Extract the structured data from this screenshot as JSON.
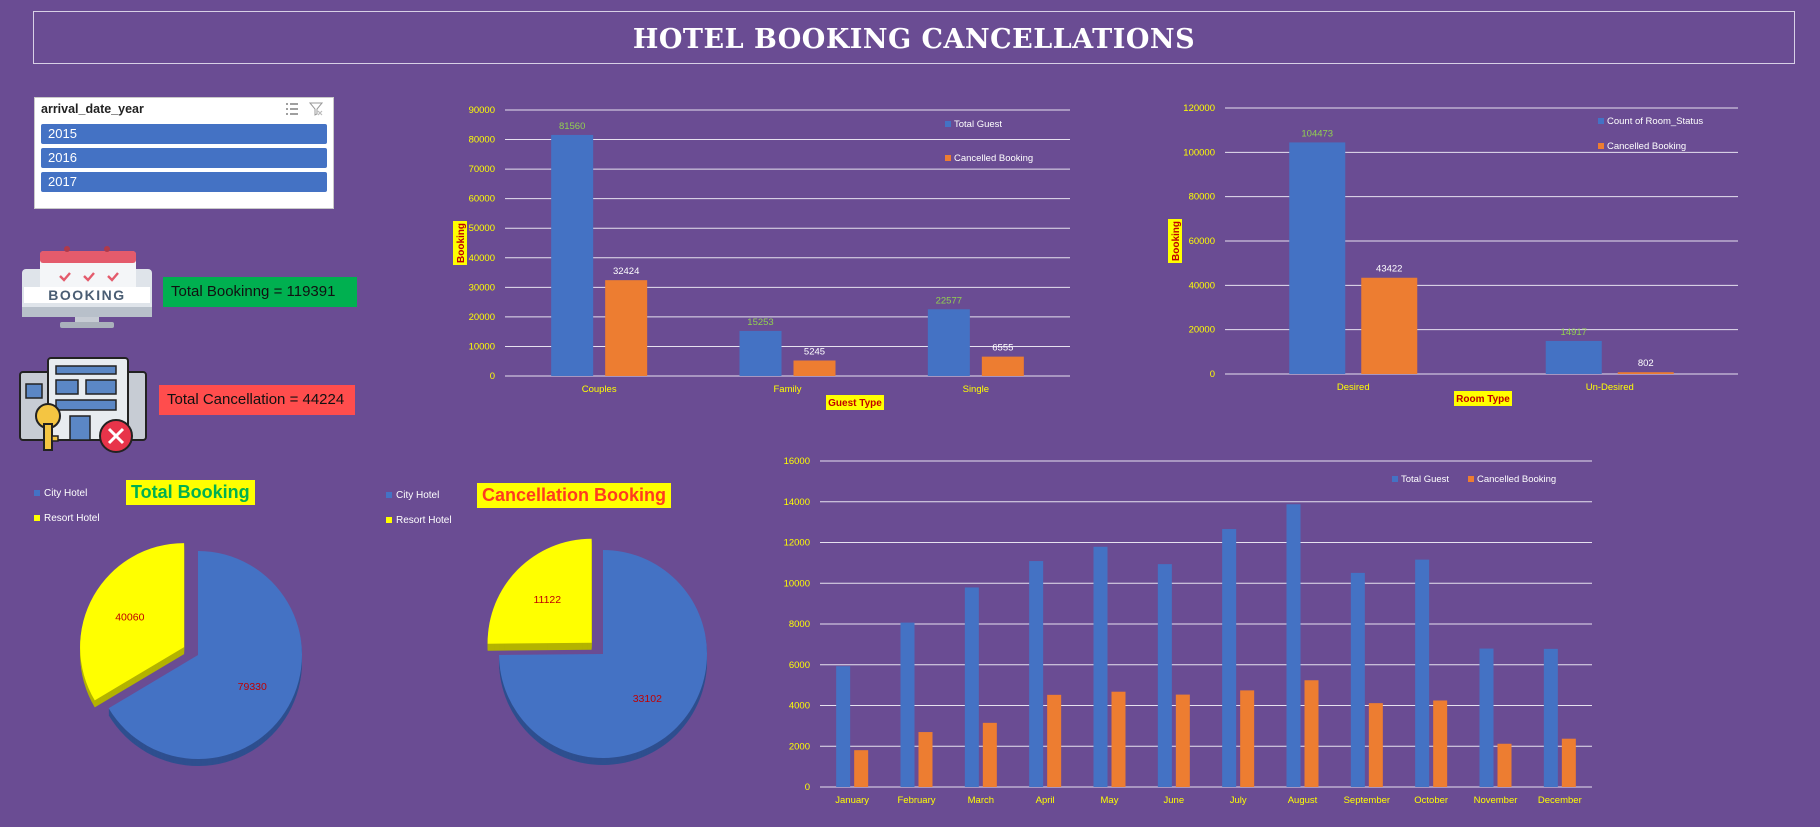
{
  "dashboard": {
    "title": "HOTEL BOOKING CANCELLATIONS",
    "background": "#6a4c93"
  },
  "slicer": {
    "header": "arrival_date_year",
    "items": [
      "2015",
      "2016",
      "2017"
    ],
    "item_color": "#4472c4",
    "icons": [
      "multi-select-icon",
      "clear-filter-icon"
    ]
  },
  "kpis": {
    "total_booking_label": "Total Bookinng = 119391",
    "total_booking_color": "#00b050",
    "total_cancellation_label": "Total Cancellation = 44224",
    "total_cancellation_color": "#ff4d4d",
    "booking_icon": "booking-calendar-monitor-icon",
    "cancellation_icon": "hotel-key-cancel-icon"
  },
  "colors": {
    "blue": "#4472c4",
    "orange": "#ed7d31",
    "yellow": "#ffff00",
    "axis_text": "#ffff00",
    "label_green": "#92d050",
    "label_red": "#c00000"
  },
  "chart_data": [
    {
      "id": "guest-type-chart",
      "type": "bar",
      "categories": [
        "Couples",
        "Family",
        "Single"
      ],
      "series": [
        {
          "name": "Total Guest",
          "values": [
            81560,
            15253,
            22577
          ]
        },
        {
          "name": "Cancelled Booking",
          "values": [
            32424,
            5245,
            6555
          ]
        }
      ],
      "xlabel": "Guest Type",
      "ylabel": "Booking",
      "ylim": [
        0,
        90000
      ],
      "yticks": [
        0,
        10000,
        20000,
        30000,
        40000,
        50000,
        60000,
        70000,
        80000,
        90000
      ],
      "grid": true,
      "legend": "top-right"
    },
    {
      "id": "room-type-chart",
      "type": "bar",
      "categories": [
        "Desired",
        "Un-Desired"
      ],
      "series": [
        {
          "name": "Count of Room_Status",
          "values": [
            104473,
            14917
          ]
        },
        {
          "name": "Cancelled Booking",
          "values": [
            43422,
            802
          ]
        }
      ],
      "xlabel": "Room Type",
      "ylabel": "Booking",
      "ylim": [
        0,
        120000
      ],
      "yticks": [
        0,
        20000,
        40000,
        60000,
        80000,
        100000,
        120000
      ],
      "grid": true,
      "legend": "top-right"
    },
    {
      "id": "total-booking-pie",
      "type": "pie",
      "title": "Total Booking",
      "categories": [
        "City Hotel",
        "Resort Hotel"
      ],
      "values": [
        79330,
        40060
      ],
      "legend": "top-left"
    },
    {
      "id": "cancellation-pie",
      "type": "pie",
      "title": "Cancellation Booking",
      "categories": [
        "City Hotel",
        "Resort Hotel"
      ],
      "values": [
        33102,
        11122
      ],
      "legend": "top-left"
    },
    {
      "id": "monthly-chart",
      "type": "bar",
      "categories": [
        "January",
        "February",
        "March",
        "April",
        "May",
        "June",
        "July",
        "August",
        "September",
        "October",
        "November",
        "December"
      ],
      "series": [
        {
          "name": "Total Guest",
          "values": [
            5929,
            8068,
            9794,
            11089,
            11791,
            10939,
            12661,
            13877,
            10508,
            11160,
            6794,
            6780
          ]
        },
        {
          "name": "Cancelled Booking",
          "values": [
            1807,
            2696,
            3149,
            4524,
            4677,
            4535,
            4742,
            5239,
            4116,
            4246,
            2122,
            2371
          ]
        }
      ],
      "ylim": [
        0,
        16000
      ],
      "yticks": [
        0,
        2000,
        4000,
        6000,
        8000,
        10000,
        12000,
        14000,
        16000
      ],
      "grid": true,
      "legend": "top-right"
    }
  ]
}
